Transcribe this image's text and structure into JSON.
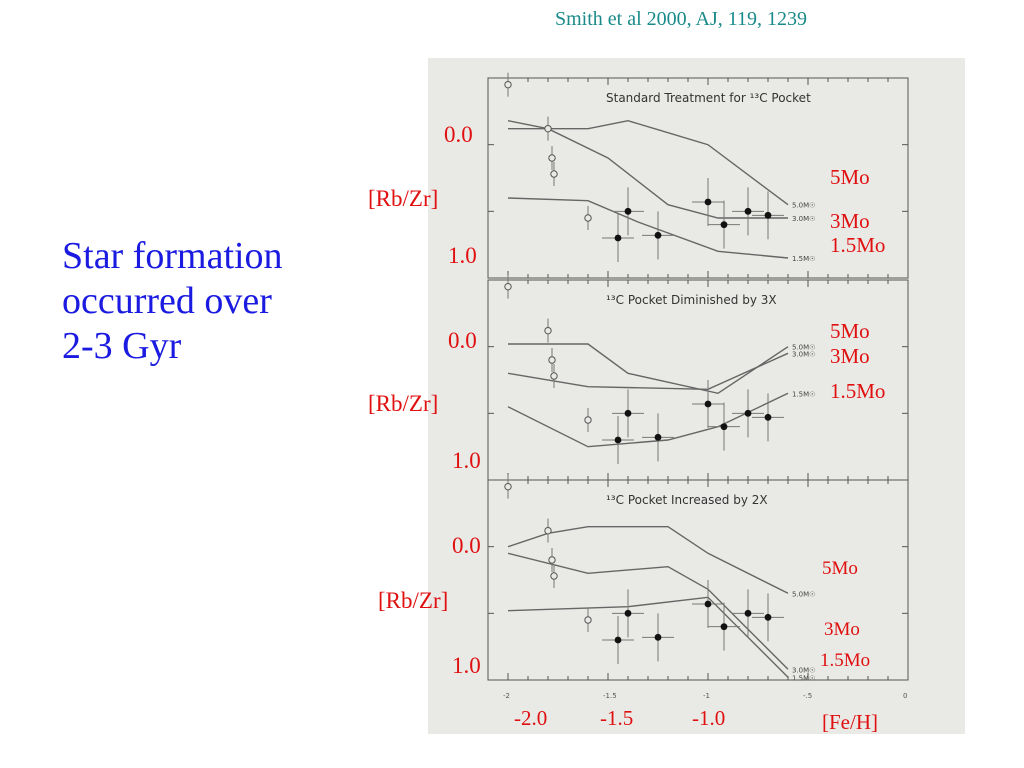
{
  "citation": "Smith et al 2000, AJ, 119, 1239",
  "headline": [
    "Star formation",
    "occurred over",
    "2-3 Gyr"
  ],
  "overlay_labels": {
    "y_zero": "0.0",
    "y_one": "1.0",
    "y_axis": "[Rb/Zr]",
    "x_ticks": [
      "-2.0",
      "-1.5",
      "-1.0"
    ],
    "x_axis": "[Fe/H]",
    "mass_5": "5Mo",
    "mass_3": "3Mo",
    "mass_15": "1.5Mo"
  },
  "colors": {
    "overlay": "#e01010",
    "headline": "#1a1ae0",
    "citation": "#1a8a8a",
    "figure_bg": "#e9e9e6",
    "ink": "#555555"
  },
  "chart_data": {
    "type": "line",
    "xlim": [
      -2.1,
      0.0
    ],
    "ylim": [
      1.0,
      -0.5
    ],
    "xticks": [
      "-2",
      "-1.5",
      "-1",
      "-.5",
      "0"
    ],
    "xlabel": "[Fe/H]",
    "ylabel": "[Rb/Zr]",
    "points": {
      "open": [
        [
          -2.0,
          -0.45
        ],
        [
          -1.8,
          -0.12
        ],
        [
          -1.78,
          0.1
        ],
        [
          -1.77,
          0.22
        ],
        [
          -1.6,
          0.55
        ]
      ],
      "filled": [
        [
          -1.45,
          0.7
        ],
        [
          -1.4,
          0.5
        ],
        [
          -1.25,
          0.68
        ],
        [
          -1.0,
          0.43
        ],
        [
          -0.92,
          0.6
        ],
        [
          -0.8,
          0.5
        ],
        [
          -0.7,
          0.53
        ]
      ]
    },
    "panels": [
      {
        "title": "Standard Treatment for ¹³C Pocket",
        "series": [
          {
            "name": "5.0M☉",
            "x": [
              -2.0,
              -1.6,
              -1.4,
              -1.0,
              -0.6
            ],
            "y": [
              -0.12,
              -0.12,
              -0.18,
              0.0,
              0.45
            ]
          },
          {
            "name": "3.0M☉",
            "x": [
              -2.0,
              -1.8,
              -1.5,
              -1.2,
              -0.95,
              -0.6
            ],
            "y": [
              -0.18,
              -0.12,
              0.1,
              0.45,
              0.55,
              0.55
            ]
          },
          {
            "name": "1.5M☉",
            "x": [
              -2.0,
              -1.6,
              -1.35,
              -0.95,
              -0.6
            ],
            "y": [
              0.4,
              0.42,
              0.58,
              0.8,
              0.85
            ]
          }
        ]
      },
      {
        "title": "¹³C Pocket Diminished by 3X",
        "series": [
          {
            "name": "5.0M☉",
            "x": [
              -2.0,
              -1.6,
              -1.4,
              -0.95,
              -0.6
            ],
            "y": [
              -0.02,
              -0.02,
              0.2,
              0.35,
              0.0
            ]
          },
          {
            "name": "3.0M☉",
            "x": [
              -2.0,
              -1.6,
              -1.0,
              -0.6
            ],
            "y": [
              0.2,
              0.3,
              0.32,
              0.05
            ]
          },
          {
            "name": "1.5M☉",
            "x": [
              -2.0,
              -1.6,
              -1.2,
              -0.95,
              -0.6
            ],
            "y": [
              0.45,
              0.75,
              0.7,
              0.6,
              0.35
            ]
          }
        ]
      },
      {
        "title": "¹³C Pocket Increased by 2X",
        "series": [
          {
            "name": "5.0M☉",
            "x": [
              -2.0,
              -1.8,
              -1.6,
              -1.2,
              -1.0,
              -0.6
            ],
            "y": [
              0.0,
              -0.1,
              -0.15,
              -0.15,
              0.05,
              0.35
            ]
          },
          {
            "name": "3.0M☉",
            "x": [
              -2.0,
              -1.6,
              -1.2,
              -1.0,
              -0.6
            ],
            "y": [
              0.05,
              0.2,
              0.15,
              0.32,
              0.92
            ]
          },
          {
            "name": "1.5M☉",
            "x": [
              -2.0,
              -1.4,
              -1.0,
              -0.6
            ],
            "y": [
              0.48,
              0.45,
              0.38,
              0.98
            ]
          }
        ]
      }
    ]
  }
}
